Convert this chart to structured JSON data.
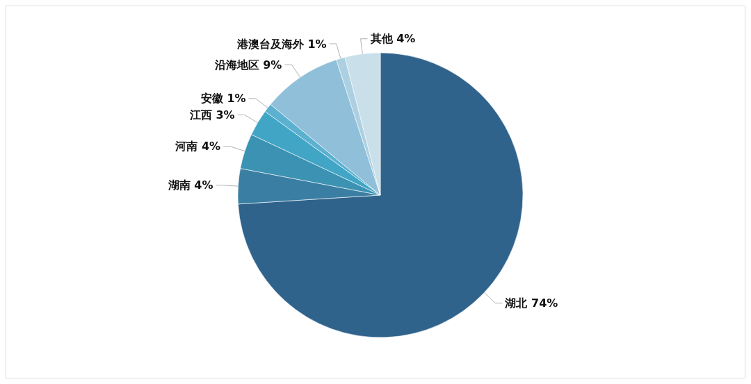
{
  "chart_data": {
    "type": "pie",
    "categories": [
      "湖北",
      "湖南",
      "河南",
      "江西",
      "安徽",
      "沿海地区",
      "港澳台及海外",
      "其他"
    ],
    "values": [
      74,
      4,
      4,
      3,
      1,
      9,
      1,
      4
    ],
    "value_labels": [
      "74%",
      "4%",
      "4%",
      "3%",
      "1%",
      "9%",
      "1%",
      "4%"
    ],
    "colors": [
      "#30638c",
      "#3a7ea3",
      "#3c92b2",
      "#41a5c6",
      "#5cb1d1",
      "#90bfd9",
      "#acd0e2",
      "#c9e0ea"
    ],
    "legend": false
  }
}
